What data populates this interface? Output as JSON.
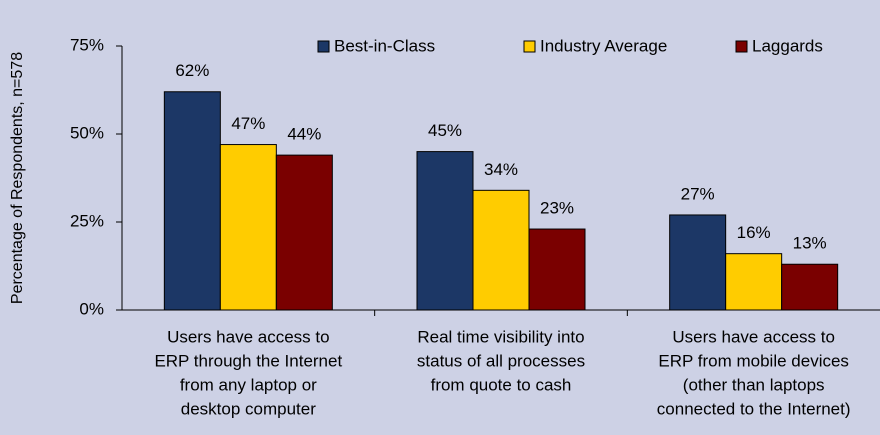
{
  "chart_data": {
    "type": "bar",
    "y_label": "Percentage of Respondents, n=578",
    "categories": [
      [
        "Users have access to",
        "ERP through the Internet",
        "from any laptop or",
        "desktop computer"
      ],
      [
        "Real time visibility into",
        "status of all processes",
        "from quote to cash"
      ],
      [
        "Users have access to",
        "ERP from mobile devices",
        "(other than laptops",
        "connected to the Internet)"
      ]
    ],
    "series": [
      {
        "name": "Best-in-Class",
        "color": "#1c3766",
        "values": [
          62,
          45,
          27
        ],
        "value_labels": [
          "62%",
          "45%",
          "27%"
        ]
      },
      {
        "name": "Industry Average",
        "color": "#ffcc00",
        "values": [
          47,
          34,
          16
        ],
        "value_labels": [
          "47%",
          "34%",
          "16%"
        ]
      },
      {
        "name": "Laggards",
        "color": "#7a0000",
        "values": [
          44,
          23,
          13
        ],
        "value_labels": [
          "44%",
          "23%",
          "13%"
        ]
      }
    ],
    "ylim": [
      0,
      75
    ],
    "yticks": [
      {
        "value": 0,
        "label": "0%"
      },
      {
        "value": 25,
        "label": "25%"
      },
      {
        "value": 50,
        "label": "50%"
      },
      {
        "value": 75,
        "label": "75%"
      }
    ],
    "legend": "top"
  }
}
